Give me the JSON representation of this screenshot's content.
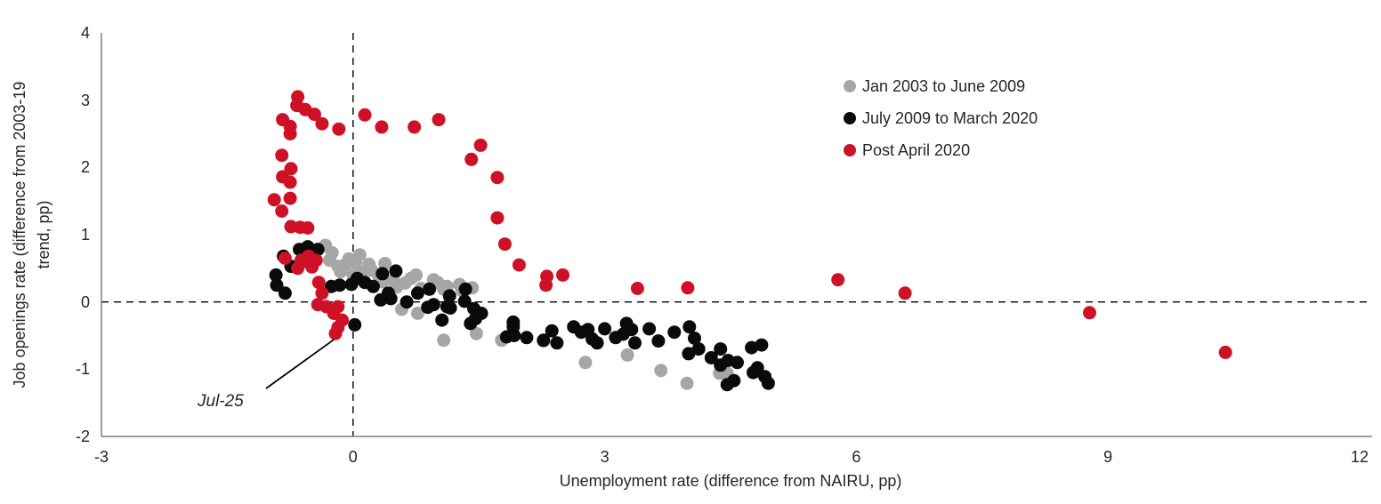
{
  "figure": {
    "background": "#ffffff",
    "text_color": "#262626",
    "axis_line_color": "#7f7f7f",
    "reference_line_color": "#000000"
  },
  "chart_data": {
    "type": "scatter",
    "title": "",
    "xlabel": "Unemployment rate (difference from NAIRU, pp)",
    "ylabel": "Job openings rate (difference from 2003-19 trend, pp)",
    "ylabel_lines": [
      "Job openings rate (difference from 2003-19",
      "trend, pp)"
    ],
    "xlim": [
      -3,
      12
    ],
    "ylim": [
      -2,
      4
    ],
    "x_ticks": [
      "-3",
      "0",
      "3",
      "6",
      "9",
      "12"
    ],
    "y_ticks": [
      "4",
      "3",
      "2",
      "1",
      "0",
      "-1",
      "-2"
    ],
    "grid": false,
    "reference_lines": [
      {
        "axis": "vertical",
        "value": 0,
        "style": "dashed"
      },
      {
        "axis": "horizontal",
        "value": 0,
        "style": "dashed"
      }
    ],
    "legend_position": "inside-upper-right",
    "annotation": {
      "text": "Jul-25",
      "target": [
        -0.21,
        -0.47
      ]
    },
    "series": [
      {
        "name": "Jan 2003 to June 2009",
        "color": "#a6a6a6",
        "points": [
          [
            1.42,
            0.21
          ],
          [
            1.3,
            0.17
          ],
          [
            1.27,
            0.26
          ],
          [
            1.12,
            0.23
          ],
          [
            1.08,
            0.19
          ],
          [
            1.01,
            0.29
          ],
          [
            0.96,
            0.33
          ],
          [
            0.81,
            0.2
          ],
          [
            0.75,
            0.4
          ],
          [
            0.69,
            0.35
          ],
          [
            0.62,
            0.28
          ],
          [
            0.52,
            0.22
          ],
          [
            0.48,
            0.32
          ],
          [
            0.35,
            0.3
          ],
          [
            0.31,
            0.38
          ],
          [
            0.38,
            0.57
          ],
          [
            0.22,
            0.47
          ],
          [
            0.19,
            0.56
          ],
          [
            0.1,
            0.44
          ],
          [
            0.03,
            0.58
          ],
          [
            0.08,
            0.7
          ],
          [
            0.0,
            0.4
          ],
          [
            -0.05,
            0.64
          ],
          [
            -0.1,
            0.55
          ],
          [
            -0.15,
            0.45
          ],
          [
            -0.18,
            0.53
          ],
          [
            -0.25,
            0.73
          ],
          [
            -0.33,
            0.84
          ],
          [
            -0.28,
            0.62
          ],
          [
            0.58,
            -0.11
          ],
          [
            0.77,
            -0.17
          ],
          [
            1.08,
            -0.57
          ],
          [
            1.47,
            -0.47
          ],
          [
            1.77,
            -0.57
          ],
          [
            2.27,
            -0.58
          ],
          [
            2.77,
            -0.9
          ],
          [
            3.27,
            -0.79
          ],
          [
            3.67,
            -1.02
          ],
          [
            3.98,
            -1.21
          ],
          [
            4.37,
            -1.06
          ],
          [
            4.46,
            -1.06
          ]
        ]
      },
      {
        "name": "July 2009 to March 2020",
        "color": "#0a0a0a",
        "points": [
          [
            4.95,
            -1.21
          ],
          [
            4.91,
            -1.11
          ],
          [
            4.87,
            -0.64
          ],
          [
            4.82,
            -0.98
          ],
          [
            4.77,
            -1.05
          ],
          [
            4.75,
            -0.68
          ],
          [
            4.58,
            -0.9
          ],
          [
            4.54,
            -1.17
          ],
          [
            4.46,
            -1.23
          ],
          [
            4.47,
            -0.87
          ],
          [
            4.38,
            -0.94
          ],
          [
            4.38,
            -0.7
          ],
          [
            4.27,
            -0.83
          ],
          [
            4.12,
            -0.7
          ],
          [
            4.07,
            -0.54
          ],
          [
            4.01,
            -0.37
          ],
          [
            4.0,
            -0.77
          ],
          [
            3.83,
            -0.45
          ],
          [
            3.64,
            -0.58
          ],
          [
            3.53,
            -0.4
          ],
          [
            3.36,
            -0.61
          ],
          [
            3.32,
            -0.41
          ],
          [
            3.26,
            -0.32
          ],
          [
            3.22,
            -0.48
          ],
          [
            3.13,
            -0.53
          ],
          [
            3.0,
            -0.4
          ],
          [
            2.91,
            -0.61
          ],
          [
            2.85,
            -0.55
          ],
          [
            2.8,
            -0.41
          ],
          [
            2.72,
            -0.45
          ],
          [
            2.63,
            -0.37
          ],
          [
            2.43,
            -0.61
          ],
          [
            2.37,
            -0.43
          ],
          [
            2.27,
            -0.57
          ],
          [
            2.07,
            -0.53
          ],
          [
            1.92,
            -0.5
          ],
          [
            1.91,
            -0.3
          ],
          [
            1.83,
            -0.52
          ],
          [
            1.91,
            -0.37
          ],
          [
            1.53,
            -0.17
          ],
          [
            1.46,
            -0.25
          ],
          [
            1.44,
            -0.1
          ],
          [
            1.4,
            -0.32
          ],
          [
            1.34,
            0.19
          ],
          [
            1.33,
            0.01
          ],
          [
            1.16,
            -0.09
          ],
          [
            1.15,
            0.09
          ],
          [
            1.12,
            -0.07
          ],
          [
            1.06,
            -0.27
          ],
          [
            0.96,
            -0.04
          ],
          [
            0.91,
            0.19
          ],
          [
            0.89,
            -0.08
          ],
          [
            0.77,
            0.13
          ],
          [
            0.64,
            0.0
          ],
          [
            0.51,
            0.46
          ],
          [
            0.45,
            0.05
          ],
          [
            0.42,
            0.13
          ],
          [
            0.35,
            0.42
          ],
          [
            0.33,
            0.03
          ],
          [
            0.24,
            0.23
          ],
          [
            0.14,
            0.29
          ],
          [
            0.05,
            0.35
          ],
          [
            0.02,
            -0.34
          ],
          [
            -0.02,
            0.26
          ],
          [
            -0.16,
            0.25
          ],
          [
            -0.26,
            0.23
          ],
          [
            -0.42,
            0.78
          ],
          [
            -0.54,
            0.82
          ],
          [
            -0.64,
            0.78
          ],
          [
            -0.74,
            0.53
          ],
          [
            -0.83,
            0.68
          ],
          [
            -0.92,
            0.4
          ],
          [
            -0.91,
            0.25
          ],
          [
            -0.81,
            0.13
          ]
        ]
      },
      {
        "name": "Post April 2020",
        "color": "#ce1126",
        "points": [
          [
            10.4,
            -0.75
          ],
          [
            8.78,
            -0.16
          ],
          [
            6.58,
            0.13
          ],
          [
            5.78,
            0.33
          ],
          [
            3.99,
            0.21
          ],
          [
            3.39,
            0.2
          ],
          [
            2.5,
            0.4
          ],
          [
            2.31,
            0.38
          ],
          [
            2.3,
            0.25
          ],
          [
            1.98,
            0.55
          ],
          [
            1.81,
            0.86
          ],
          [
            1.72,
            1.25
          ],
          [
            1.72,
            1.85
          ],
          [
            1.52,
            2.33
          ],
          [
            1.41,
            2.12
          ],
          [
            1.02,
            2.71
          ],
          [
            0.73,
            2.6
          ],
          [
            0.34,
            2.6
          ],
          [
            0.14,
            2.78
          ],
          [
            -0.17,
            2.57
          ],
          [
            -0.37,
            2.65
          ],
          [
            -0.46,
            2.79
          ],
          [
            -0.57,
            2.86
          ],
          [
            -0.67,
            2.92
          ],
          [
            -0.66,
            3.05
          ],
          [
            -0.75,
            2.61
          ],
          [
            -0.84,
            2.71
          ],
          [
            -0.75,
            2.5
          ],
          [
            -0.85,
            2.18
          ],
          [
            -0.74,
            1.98
          ],
          [
            -0.84,
            1.86
          ],
          [
            -0.75,
            1.78
          ],
          [
            -0.94,
            1.52
          ],
          [
            -0.75,
            1.54
          ],
          [
            -0.85,
            1.35
          ],
          [
            -0.74,
            1.12
          ],
          [
            -0.63,
            1.11
          ],
          [
            -0.54,
            1.1
          ],
          [
            -0.81,
            0.65
          ],
          [
            -0.62,
            0.62
          ],
          [
            -0.53,
            0.68
          ],
          [
            -0.66,
            0.5
          ],
          [
            -0.56,
            0.6
          ],
          [
            -0.49,
            0.52
          ],
          [
            -0.44,
            0.62
          ],
          [
            -0.41,
            0.29
          ],
          [
            -0.37,
            0.13
          ],
          [
            -0.42,
            -0.04
          ],
          [
            -0.32,
            -0.07
          ],
          [
            -0.23,
            -0.17
          ],
          [
            -0.18,
            -0.07
          ],
          [
            -0.13,
            -0.27
          ],
          [
            -0.18,
            -0.38
          ],
          [
            -0.21,
            -0.47
          ]
        ]
      }
    ]
  }
}
